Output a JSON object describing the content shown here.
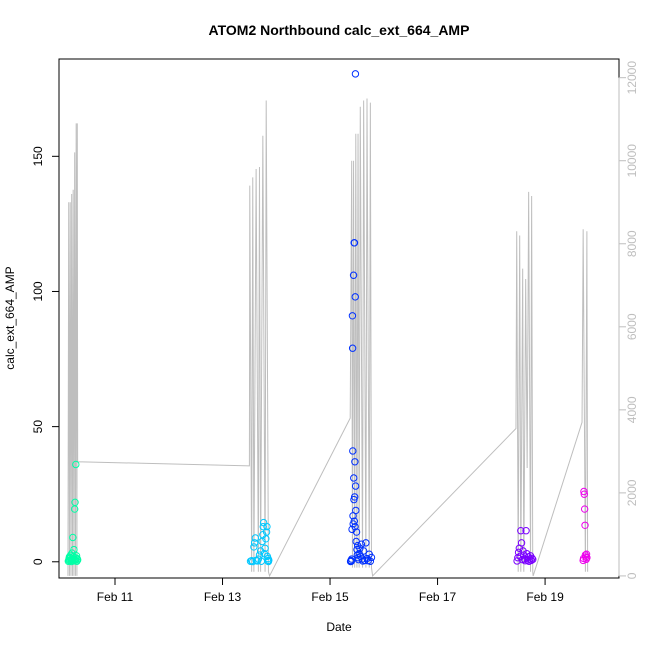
{
  "chart_data": {
    "type": "scatter",
    "title": "ATOM2 Northbound calc_ext_664_AMP",
    "xlabel": "Date",
    "ylabel": "calc_ext_664_AMP",
    "x_ticks": [
      "Feb 11",
      "Feb 13",
      "Feb 15",
      "Feb 17",
      "Feb 19"
    ],
    "y_ticks": [
      0,
      50,
      100,
      150
    ],
    "y2_ticks": [
      0,
      2000,
      4000,
      6000,
      8000,
      10000,
      12000
    ],
    "xlim": [
      "2024-02-09 23:00",
      "2024-02-20 09:00"
    ],
    "ylim": [
      -6,
      186
    ],
    "y2lim": [
      -50,
      12450
    ],
    "grid": false,
    "colors": {
      "line": "#bebebe",
      "axis": "#000000",
      "right_axis": "#bebebe"
    },
    "point_series": [
      {
        "color": "#00ffa6",
        "points": [
          [
            "2024-02-10 03:10",
            0.2
          ],
          [
            "2024-02-10 03:20",
            0.6
          ],
          [
            "2024-02-10 03:30",
            1.2
          ],
          [
            "2024-02-10 03:40",
            1.8
          ],
          [
            "2024-02-10 03:50",
            0.4
          ],
          [
            "2024-02-10 04:00",
            1.5
          ],
          [
            "2024-02-10 04:10",
            2.4
          ],
          [
            "2024-02-10 04:20",
            0.8
          ],
          [
            "2024-02-10 04:30",
            0.1
          ],
          [
            "2024-02-10 04:40",
            1.0
          ],
          [
            "2024-02-10 04:50",
            3.2
          ],
          [
            "2024-02-10 05:00",
            0.5
          ],
          [
            "2024-02-10 05:10",
            9.0
          ],
          [
            "2024-02-10 05:20",
            1.9
          ],
          [
            "2024-02-10 05:30",
            0.3
          ],
          [
            "2024-02-10 05:40",
            4.5
          ],
          [
            "2024-02-10 05:50",
            0.9
          ],
          [
            "2024-02-10 06:00",
            19.5
          ],
          [
            "2024-02-10 06:10",
            22.0
          ],
          [
            "2024-02-10 06:20",
            0.6
          ],
          [
            "2024-02-10 06:30",
            36.0
          ],
          [
            "2024-02-10 06:40",
            1.4
          ],
          [
            "2024-02-10 06:50",
            2.2
          ],
          [
            "2024-02-10 07:00",
            0.2
          ],
          [
            "2024-02-10 07:10",
            1.1
          ],
          [
            "2024-02-10 07:20",
            0.7
          ]
        ]
      },
      {
        "color": "#00c8ff",
        "points": [
          [
            "2024-02-13 12:30",
            0.2
          ],
          [
            "2024-02-13 13:00",
            0.4
          ],
          [
            "2024-02-13 13:30",
            0.1
          ],
          [
            "2024-02-13 14:00",
            5.5
          ],
          [
            "2024-02-13 14:20",
            7.0
          ],
          [
            "2024-02-13 14:40",
            8.8
          ],
          [
            "2024-02-13 15:00",
            0.5
          ],
          [
            "2024-02-13 15:30",
            0.3
          ],
          [
            "2024-02-13 16:00",
            1.0
          ],
          [
            "2024-02-13 16:30",
            2.5
          ],
          [
            "2024-02-13 17:00",
            4.0
          ],
          [
            "2024-02-13 17:20",
            0.2
          ],
          [
            "2024-02-13 17:40",
            7.5
          ],
          [
            "2024-02-13 18:00",
            10.0
          ],
          [
            "2024-02-13 18:10",
            13.0
          ],
          [
            "2024-02-13 18:20",
            14.5
          ],
          [
            "2024-02-13 18:40",
            3.0
          ],
          [
            "2024-02-13 19:00",
            5.0
          ],
          [
            "2024-02-13 19:20",
            8.5
          ],
          [
            "2024-02-13 19:40",
            11.0
          ],
          [
            "2024-02-13 19:50",
            13.0
          ],
          [
            "2024-02-13 20:00",
            2.0
          ],
          [
            "2024-02-13 20:10",
            0.4
          ],
          [
            "2024-02-13 20:20",
            1.2
          ],
          [
            "2024-02-13 20:30",
            0.1
          ],
          [
            "2024-02-13 20:40",
            0.6
          ]
        ]
      },
      {
        "color": "#0030ff",
        "points": [
          [
            "2024-02-15 09:30",
            0.2
          ],
          [
            "2024-02-15 09:40",
            1.0
          ],
          [
            "2024-02-15 09:50",
            12.0
          ],
          [
            "2024-02-15 10:00",
            91.0
          ],
          [
            "2024-02-15 10:05",
            79.0
          ],
          [
            "2024-02-15 10:10",
            41.0
          ],
          [
            "2024-02-15 10:15",
            17.0
          ],
          [
            "2024-02-15 10:20",
            14.0
          ],
          [
            "2024-02-15 10:30",
            106.0
          ],
          [
            "2024-02-15 10:35",
            31.0
          ],
          [
            "2024-02-15 10:40",
            23.0
          ],
          [
            "2024-02-15 10:45",
            118.0
          ],
          [
            "2024-02-15 10:50",
            15.0
          ],
          [
            "2024-02-15 10:55",
            118.0
          ],
          [
            "2024-02-15 11:00",
            24.0
          ],
          [
            "2024-02-15 11:05",
            37.0
          ],
          [
            "2024-02-15 11:10",
            13.0
          ],
          [
            "2024-02-15 11:15",
            98.0
          ],
          [
            "2024-02-15 11:20",
            180.5
          ],
          [
            "2024-02-15 11:25",
            28.0
          ],
          [
            "2024-02-15 11:30",
            19.0
          ],
          [
            "2024-02-15 11:40",
            7.5
          ],
          [
            "2024-02-15 11:50",
            11.0
          ],
          [
            "2024-02-15 12:00",
            4.5
          ],
          [
            "2024-02-15 12:10",
            2.5
          ],
          [
            "2024-02-15 12:20",
            6.0
          ],
          [
            "2024-02-15 12:30",
            1.5
          ],
          [
            "2024-02-15 12:40",
            0.8
          ],
          [
            "2024-02-15 13:00",
            3.0
          ],
          [
            "2024-02-15 13:20",
            5.0
          ],
          [
            "2024-02-15 13:40",
            2.0
          ],
          [
            "2024-02-15 14:00",
            6.5
          ],
          [
            "2024-02-15 14:20",
            1.0
          ],
          [
            "2024-02-15 14:40",
            0.3
          ],
          [
            "2024-02-15 15:00",
            4.0
          ],
          [
            "2024-02-15 15:30",
            0.5
          ],
          [
            "2024-02-15 16:00",
            7.0
          ],
          [
            "2024-02-15 16:30",
            1.2
          ],
          [
            "2024-02-15 17:00",
            0.4
          ],
          [
            "2024-02-15 17:30",
            2.8
          ],
          [
            "2024-02-15 18:00",
            0.2
          ],
          [
            "2024-02-15 18:30",
            1.6
          ],
          [
            "2024-02-15 09:20",
            0.5
          ],
          [
            "2024-02-15 09:10",
            0.1
          ]
        ]
      },
      {
        "color": "#7a00ff",
        "points": [
          [
            "2024-02-18 11:30",
            0.3
          ],
          [
            "2024-02-18 11:50",
            1.5
          ],
          [
            "2024-02-18 12:10",
            3.5
          ],
          [
            "2024-02-18 12:30",
            5.0
          ],
          [
            "2024-02-18 12:50",
            2.0
          ],
          [
            "2024-02-18 13:10",
            11.5
          ],
          [
            "2024-02-18 13:30",
            7.0
          ],
          [
            "2024-02-18 13:50",
            0.8
          ],
          [
            "2024-02-18 14:10",
            4.0
          ],
          [
            "2024-02-18 14:30",
            2.5
          ],
          [
            "2024-02-18 14:50",
            1.0
          ],
          [
            "2024-02-18 15:10",
            0.4
          ],
          [
            "2024-02-18 15:30",
            11.5
          ],
          [
            "2024-02-18 15:50",
            3.0
          ],
          [
            "2024-02-18 16:10",
            0.6
          ],
          [
            "2024-02-18 16:30",
            1.8
          ],
          [
            "2024-02-18 16:50",
            0.2
          ],
          [
            "2024-02-18 17:10",
            1.0
          ],
          [
            "2024-02-18 17:30",
            2.2
          ],
          [
            "2024-02-18 17:50",
            0.5
          ],
          [
            "2024-02-18 18:10",
            1.3
          ],
          [
            "2024-02-18 18:30",
            0.9
          ]
        ]
      },
      {
        "color": "#ee00ee",
        "points": [
          [
            "2024-02-19 17:00",
            0.5
          ],
          [
            "2024-02-19 17:10",
            1.2
          ],
          [
            "2024-02-19 17:20",
            26.0
          ],
          [
            "2024-02-19 17:30",
            25.0
          ],
          [
            "2024-02-19 17:40",
            19.5
          ],
          [
            "2024-02-19 17:50",
            13.5
          ],
          [
            "2024-02-19 18:00",
            2.5
          ],
          [
            "2024-02-19 18:10",
            1.8
          ],
          [
            "2024-02-19 18:20",
            0.9
          ],
          [
            "2024-02-19 18:30",
            2.8
          ],
          [
            "2024-02-19 18:40",
            1.5
          ]
        ]
      }
    ],
    "line_series": {
      "axis": "right",
      "points": [
        [
          "2024-02-10 03:00",
          0
        ],
        [
          "2024-02-10 03:20",
          9000
        ],
        [
          "2024-02-10 03:40",
          0
        ],
        [
          "2024-02-10 04:00",
          9000
        ],
        [
          "2024-02-10 04:20",
          0
        ],
        [
          "2024-02-10 04:40",
          9200
        ],
        [
          "2024-02-10 05:00",
          0
        ],
        [
          "2024-02-10 05:20",
          9300
        ],
        [
          "2024-02-10 05:40",
          0
        ],
        [
          "2024-02-10 06:00",
          10200
        ],
        [
          "2024-02-10 06:20",
          0
        ],
        [
          "2024-02-10 06:40",
          10900
        ],
        [
          "2024-02-10 07:00",
          0
        ],
        [
          "2024-02-10 07:10",
          10900
        ],
        [
          "2024-02-10 07:20",
          2750
        ],
        [
          "2024-02-13 12:00",
          2650
        ],
        [
          "2024-02-13 12:10",
          9400
        ],
        [
          "2024-02-13 13:00",
          100
        ],
        [
          "2024-02-13 13:30",
          9600
        ],
        [
          "2024-02-13 14:00",
          100
        ],
        [
          "2024-02-13 15:00",
          9800
        ],
        [
          "2024-02-13 16:00",
          100
        ],
        [
          "2024-02-13 16:30",
          9850
        ],
        [
          "2024-02-13 17:00",
          100
        ],
        [
          "2024-02-13 18:00",
          10600
        ],
        [
          "2024-02-13 19:00",
          100
        ],
        [
          "2024-02-13 19:30",
          11450
        ],
        [
          "2024-02-13 20:30",
          100
        ],
        [
          "2024-02-13 21:00",
          0
        ],
        [
          "2024-02-15 09:00",
          3800
        ],
        [
          "2024-02-15 09:40",
          10000
        ],
        [
          "2024-02-15 10:00",
          200
        ],
        [
          "2024-02-15 10:30",
          10000
        ],
        [
          "2024-02-15 11:00",
          200
        ],
        [
          "2024-02-15 11:30",
          10650
        ],
        [
          "2024-02-15 12:00",
          200
        ],
        [
          "2024-02-15 12:30",
          10650
        ],
        [
          "2024-02-15 13:00",
          200
        ],
        [
          "2024-02-15 13:30",
          11300
        ],
        [
          "2024-02-15 14:30",
          200
        ],
        [
          "2024-02-15 15:00",
          11450
        ],
        [
          "2024-02-15 16:00",
          200
        ],
        [
          "2024-02-15 16:30",
          11500
        ],
        [
          "2024-02-15 17:30",
          200
        ],
        [
          "2024-02-15 18:00",
          11400
        ],
        [
          "2024-02-15 18:30",
          200
        ],
        [
          "2024-02-15 19:00",
          0
        ],
        [
          "2024-02-18 11:00",
          3550
        ],
        [
          "2024-02-18 11:20",
          8300
        ],
        [
          "2024-02-18 12:00",
          100
        ],
        [
          "2024-02-18 12:40",
          8200
        ],
        [
          "2024-02-18 13:10",
          100
        ],
        [
          "2024-02-18 14:00",
          7400
        ],
        [
          "2024-02-18 14:30",
          100
        ],
        [
          "2024-02-18 15:20",
          7150
        ],
        [
          "2024-02-18 16:00",
          2600
        ],
        [
          "2024-02-18 16:40",
          9250
        ],
        [
          "2024-02-18 17:30",
          100
        ],
        [
          "2024-02-18 18:00",
          9150
        ],
        [
          "2024-02-18 18:30",
          100
        ],
        [
          "2024-02-18 18:40",
          0
        ],
        [
          "2024-02-19 16:30",
          3700
        ],
        [
          "2024-02-19 17:00",
          8350
        ],
        [
          "2024-02-19 18:00",
          100
        ],
        [
          "2024-02-19 18:40",
          8300
        ],
        [
          "2024-02-19 19:00",
          100
        ]
      ]
    }
  }
}
